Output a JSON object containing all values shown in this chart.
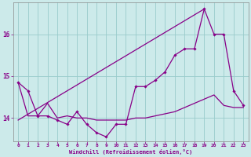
{
  "xlabel": "Windchill (Refroidissement éolien,°C)",
  "bg_color": "#cceaea",
  "line_color": "#880088",
  "grid_color": "#99cccc",
  "xlim": [
    -0.5,
    23.5
  ],
  "ylim": [
    13.45,
    16.75
  ],
  "yticks": [
    14,
    15,
    16
  ],
  "xticks": [
    0,
    1,
    2,
    3,
    4,
    5,
    6,
    7,
    8,
    9,
    10,
    11,
    12,
    13,
    14,
    15,
    16,
    17,
    18,
    19,
    20,
    21,
    22,
    23
  ],
  "x_data": [
    0,
    1,
    2,
    3,
    4,
    5,
    6,
    7,
    8,
    9,
    10,
    11,
    12,
    13,
    14,
    15,
    16,
    17,
    18,
    19,
    20,
    21,
    22,
    23
  ],
  "y_jagged": [
    14.85,
    14.65,
    14.05,
    14.05,
    13.95,
    13.85,
    14.15,
    13.85,
    13.65,
    13.55,
    13.85,
    13.85,
    14.75,
    14.75,
    14.9,
    15.1,
    15.5,
    15.65,
    15.65,
    16.6,
    16.0,
    16.0,
    14.65,
    14.3
  ],
  "y_flat": [
    14.85,
    14.05,
    14.05,
    14.35,
    14.0,
    14.05,
    14.0,
    14.0,
    13.95,
    13.95,
    13.95,
    13.95,
    14.0,
    14.0,
    14.05,
    14.1,
    14.15,
    14.25,
    14.35,
    14.45,
    14.55,
    14.3,
    14.25,
    14.25
  ],
  "y_straight_start": 13.95,
  "y_straight_end": 16.6,
  "x_straight_start": 0,
  "x_straight_end": 19
}
